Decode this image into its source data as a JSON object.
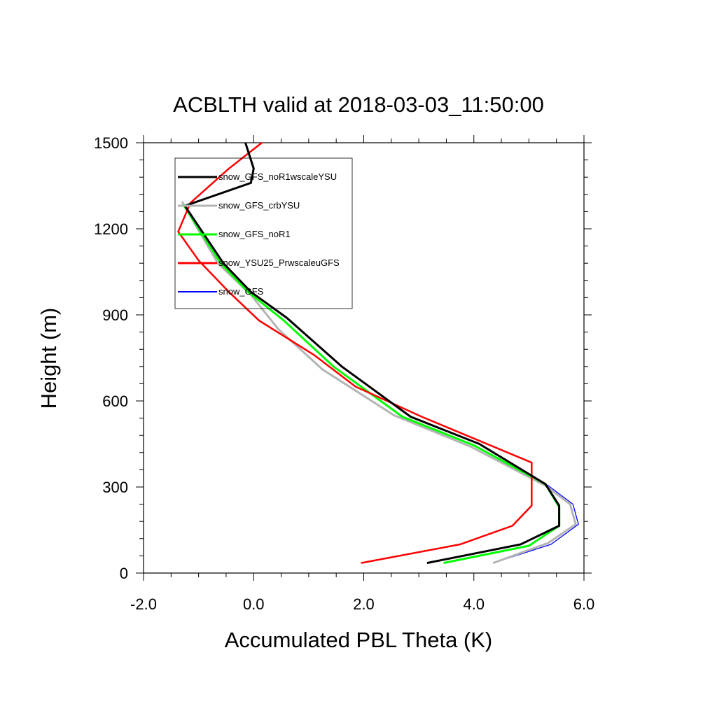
{
  "chart_data": {
    "type": "line",
    "title": "ACBLTH valid at 2018-03-03_11:50:00",
    "xlabel": "Accumulated PBL Theta (K)",
    "ylabel": "Height (m)",
    "xlim": [
      -2.0,
      6.0
    ],
    "ylim": [
      0,
      1500
    ],
    "x_ticks": [
      "-2.0",
      "0.0",
      "2.0",
      "4.0",
      "6.0"
    ],
    "x_tick_values": [
      -2.0,
      0.0,
      2.0,
      4.0,
      6.0
    ],
    "y_ticks": [
      "0",
      "300",
      "600",
      "900",
      "1200",
      "1500"
    ],
    "y_tick_values": [
      0,
      300,
      600,
      900,
      1200,
      1500
    ],
    "grid": false,
    "legend_position": "top-left",
    "series": [
      {
        "name": "snow_GFS_noR1wscaleYSU",
        "color": "#000000",
        "points": [
          [
            3.15,
            35
          ],
          [
            4.85,
            100
          ],
          [
            5.55,
            165
          ],
          [
            5.55,
            235
          ],
          [
            5.3,
            310
          ],
          [
            4.1,
            450
          ],
          [
            2.85,
            545
          ],
          [
            1.6,
            720
          ],
          [
            0.6,
            890
          ],
          [
            -0.05,
            980
          ],
          [
            -0.55,
            1080
          ],
          [
            -1.25,
            1280
          ],
          [
            -0.05,
            1360
          ],
          [
            0.0,
            1410
          ],
          [
            -0.15,
            1500
          ]
        ]
      },
      {
        "name": "snow_GFS_crbYSU",
        "color": "#b4b4b4",
        "points": [
          [
            4.35,
            35
          ],
          [
            5.35,
            105
          ],
          [
            5.85,
            170
          ],
          [
            5.75,
            240
          ],
          [
            5.3,
            305
          ],
          [
            3.95,
            440
          ],
          [
            2.55,
            550
          ],
          [
            1.25,
            710
          ],
          [
            0.45,
            850
          ],
          [
            -0.05,
            970
          ],
          [
            -0.65,
            1080
          ],
          [
            -1.3,
            1295
          ]
        ]
      },
      {
        "name": "snow_GFS_noR1",
        "color": "#00ff00",
        "points": [
          [
            3.45,
            35
          ],
          [
            5.0,
            95
          ],
          [
            5.55,
            165
          ],
          [
            5.55,
            230
          ],
          [
            5.3,
            310
          ],
          [
            4.0,
            445
          ],
          [
            2.7,
            545
          ],
          [
            1.45,
            720
          ],
          [
            0.55,
            880
          ],
          [
            -0.1,
            980
          ],
          [
            -0.6,
            1080
          ],
          [
            -1.28,
            1285
          ]
        ]
      },
      {
        "name": "snow_YSU25_PrwscaleuGFS",
        "color": "#ff0000",
        "points": [
          [
            1.95,
            35
          ],
          [
            3.75,
            100
          ],
          [
            4.7,
            165
          ],
          [
            5.05,
            235
          ],
          [
            5.05,
            385
          ],
          [
            3.05,
            545
          ],
          [
            1.85,
            650
          ],
          [
            1.1,
            760
          ],
          [
            0.1,
            880
          ],
          [
            -0.45,
            980
          ],
          [
            -1.0,
            1090
          ],
          [
            -1.37,
            1190
          ],
          [
            -1.15,
            1290
          ],
          [
            -0.45,
            1410
          ],
          [
            0.15,
            1500
          ]
        ]
      },
      {
        "name": "snow_GFS",
        "color": "#0000ff",
        "points": [
          [
            4.35,
            35
          ],
          [
            5.4,
            100
          ],
          [
            5.9,
            170
          ],
          [
            5.8,
            240
          ],
          [
            5.35,
            305
          ],
          [
            3.95,
            440
          ],
          [
            2.55,
            550
          ],
          [
            1.25,
            710
          ],
          [
            0.45,
            850
          ],
          [
            -0.05,
            970
          ],
          [
            -0.65,
            1080
          ],
          [
            -1.3,
            1295
          ]
        ]
      }
    ]
  }
}
